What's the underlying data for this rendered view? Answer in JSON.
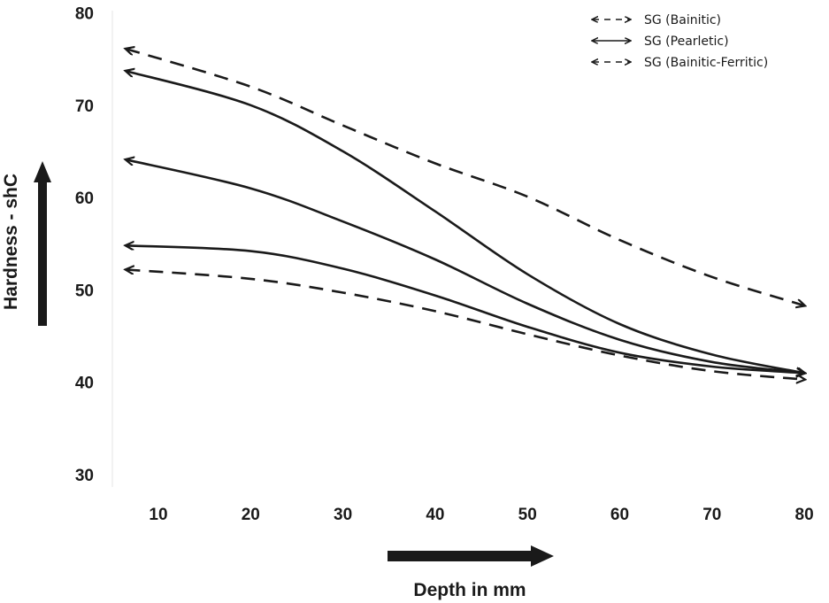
{
  "chart_data": {
    "type": "line",
    "xlabel": "Depth in mm",
    "ylabel": "Hardness - shC",
    "xlim": [
      5,
      80
    ],
    "ylim": [
      30,
      80
    ],
    "xticks": [
      10,
      20,
      30,
      40,
      50,
      60,
      70,
      80
    ],
    "yticks": [
      30,
      40,
      50,
      60,
      70,
      80
    ],
    "grid": false,
    "legend_position": "top-right",
    "legend": [
      {
        "label": "SG (Bainitic)",
        "style": "dashed"
      },
      {
        "label": "SG (Pearletic)",
        "style": "solid"
      },
      {
        "label": "SG (Bainitic-Ferritic)",
        "style": "dashed"
      }
    ],
    "series": [
      {
        "style": "dashed",
        "x": [
          6.5,
          20,
          30,
          40,
          50,
          60,
          70,
          80
        ],
        "y": [
          76.1,
          72.0,
          67.8,
          63.7,
          60.1,
          55.4,
          51.4,
          48.3
        ]
      },
      {
        "style": "solid",
        "x": [
          6.5,
          20,
          30,
          40,
          50,
          60,
          70,
          80
        ],
        "y": [
          73.7,
          70.0,
          65.0,
          58.5,
          51.7,
          46.3,
          43.0,
          41.0
        ]
      },
      {
        "style": "solid",
        "x": [
          6.5,
          20,
          30,
          40,
          50,
          60,
          70,
          80
        ],
        "y": [
          64.1,
          61.0,
          57.4,
          53.3,
          48.5,
          44.6,
          42.2,
          41.0
        ]
      },
      {
        "style": "solid",
        "x": [
          6.5,
          20,
          30,
          40,
          50,
          60,
          70,
          80
        ],
        "y": [
          54.8,
          54.2,
          52.3,
          49.4,
          46.0,
          43.2,
          41.7,
          41.0
        ]
      },
      {
        "style": "dashed",
        "x": [
          6.5,
          20,
          30,
          40,
          50,
          60,
          70,
          80
        ],
        "y": [
          52.2,
          51.2,
          49.7,
          47.7,
          45.2,
          42.9,
          41.2,
          40.3
        ]
      }
    ]
  }
}
